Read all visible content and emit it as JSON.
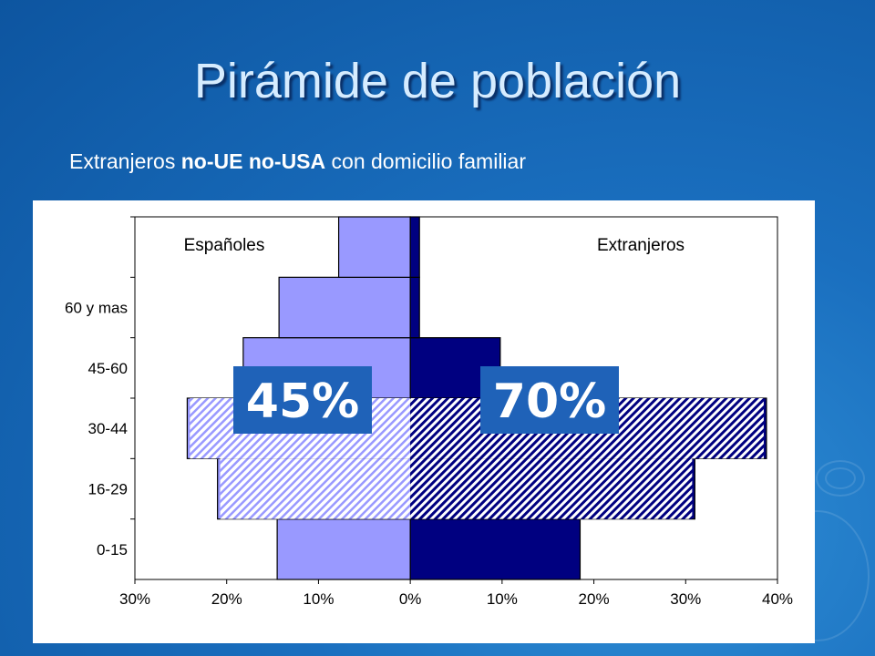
{
  "title": "Pirámide de población",
  "subtitle": {
    "pre": "Extranjeros ",
    "bold": "no-UE no-USA",
    "post": " con domicilio familiar"
  },
  "colors": {
    "espanoles": "#9999ff",
    "extranjeros": "#000080",
    "highlight_label_bg": "#1f62b8",
    "highlight_label_text": "#ffffff"
  },
  "chart_data": {
    "type": "bar",
    "orientation": "horizontal-pyramid",
    "legend_labels": {
      "left": "Españoles",
      "right": "Extranjeros"
    },
    "age_groups": [
      "0-15",
      "16-29",
      "30-44",
      "45-60",
      "60 y mas",
      ""
    ],
    "series": [
      {
        "name": "Españoles",
        "side": "left",
        "values": [
          14.5,
          21,
          24.3,
          18.2,
          14.3,
          7.8
        ]
      },
      {
        "name": "Extranjeros",
        "side": "right",
        "values": [
          18.5,
          31,
          38.8,
          9.8,
          1,
          1
        ]
      }
    ],
    "x_ticks": [
      "30%",
      "20%",
      "10%",
      "0%",
      "10%",
      "20%",
      "30%",
      "40%"
    ],
    "x_range": [
      -30,
      40
    ],
    "highlight": {
      "groups": [
        "16-29",
        "30-44"
      ],
      "left_label": "45%",
      "right_label": "70%"
    }
  }
}
